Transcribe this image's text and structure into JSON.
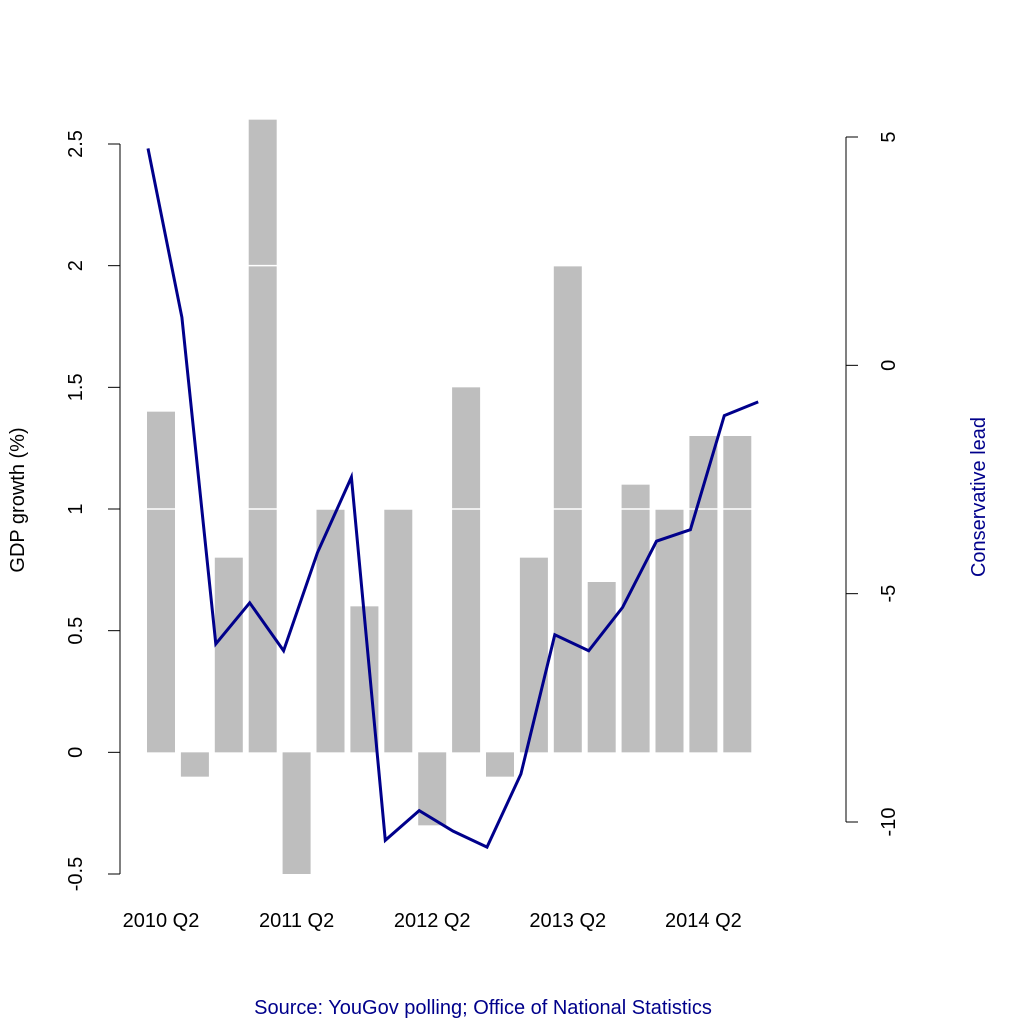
{
  "chart_data": {
    "type": "bar_line",
    "ylabel": "GDP growth (%)",
    "y2label": "Conservative lead",
    "source": "Source: YouGov polling; Office of National Statistics",
    "categories": [
      "2010 Q2",
      null,
      null,
      null,
      "2011 Q2",
      null,
      null,
      null,
      "2012 Q2",
      null,
      null,
      null,
      "2013 Q2",
      null,
      null,
      null,
      "2014 Q2",
      null,
      null
    ],
    "series": [
      {
        "name": "GDP growth",
        "color": "#bebebe",
        "values": [
          1.4,
          -0.1,
          0.8,
          2.6,
          -0.5,
          1.0,
          0.6,
          1.0,
          -0.3,
          1.5,
          -0.1,
          0.8,
          2.0,
          0.7,
          1.1,
          1.0,
          1.3,
          1.3,
          null
        ]
      },
      {
        "name": "Conservative lead",
        "color": "#00008b",
        "axis": "y2",
        "values": [
          4.75,
          1.05,
          -6.1,
          -5.2,
          -6.25,
          -4.1,
          -2.45,
          -10.4,
          -9.75,
          -10.2,
          -10.55,
          -8.95,
          -5.9,
          -6.25,
          -5.3,
          -3.85,
          -3.6,
          -1.1,
          -0.8
        ]
      }
    ],
    "ylim": [
      -0.5,
      2.5
    ],
    "yticks": [
      -0.5,
      0.0,
      0.5,
      1.0,
      1.5,
      2.0,
      2.5
    ],
    "y2lim": [
      -10,
      5
    ],
    "y2ticks": [
      -10,
      -5,
      0,
      5
    ],
    "hlines": [
      1.0,
      2.0
    ],
    "hline_color": "#ffffff",
    "label_color": "#00008b"
  }
}
